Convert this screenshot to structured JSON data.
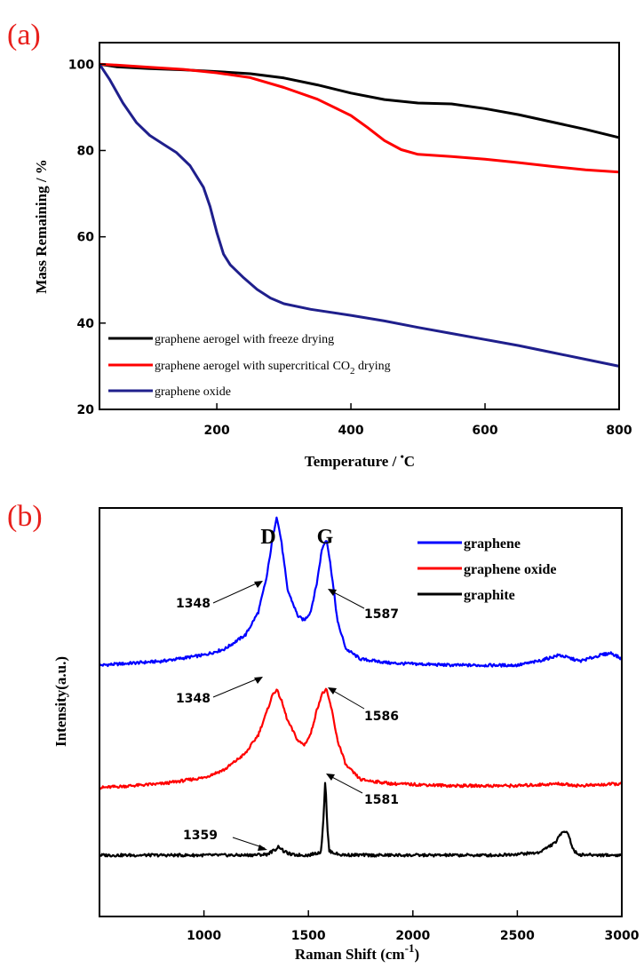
{
  "chart_data": [
    {
      "panel": "(a)",
      "type": "line",
      "xlabel_main": "Temperature / ",
      "xlabel_unit": "C",
      "ylabel": "Mass Remaining / %",
      "xlim": [
        25,
        800
      ],
      "ylim": [
        20,
        105
      ],
      "x_ticks": [
        "200",
        "400",
        "600",
        "800"
      ],
      "y_ticks": [
        "20",
        "40",
        "60",
        "80",
        "100"
      ],
      "legend_position": "bottom-left",
      "series": [
        {
          "name": "graphene aerogel with freeze drying",
          "color": "#000000",
          "x": [
            25,
            50,
            100,
            150,
            200,
            250,
            300,
            350,
            400,
            450,
            500,
            550,
            600,
            650,
            700,
            750,
            800
          ],
          "y": [
            100,
            99.4,
            99,
            98.7,
            98.3,
            97.8,
            96.8,
            95.2,
            93.3,
            91.8,
            91.0,
            90.8,
            89.7,
            88.3,
            86.6,
            84.9,
            83.0
          ]
        },
        {
          "name": "graphene aerogel with supercritical CO2 drying",
          "name_main": "graphene aerogel with supercritical CO",
          "name_sub": "2",
          "name_tail": " drying",
          "color": "#ff0000",
          "x": [
            25,
            50,
            100,
            150,
            200,
            250,
            300,
            350,
            400,
            425,
            450,
            475,
            500,
            550,
            600,
            650,
            700,
            750,
            800
          ],
          "y": [
            100,
            99.8,
            99.3,
            98.8,
            98.0,
            96.9,
            94.6,
            91.9,
            88.1,
            85.3,
            82.3,
            80.2,
            79.1,
            78.6,
            78.0,
            77.2,
            76.3,
            75.5,
            75.0
          ]
        },
        {
          "name": "graphene oxide",
          "color": "#1f1f8c",
          "x": [
            25,
            40,
            60,
            80,
            100,
            120,
            140,
            160,
            180,
            190,
            200,
            210,
            220,
            240,
            260,
            280,
            300,
            340,
            400,
            450,
            500,
            550,
            600,
            650,
            700,
            750,
            800
          ],
          "y": [
            100,
            96.5,
            91,
            86.5,
            83.5,
            81.5,
            79.5,
            76.5,
            71.5,
            67,
            61,
            56,
            53.5,
            50.5,
            47.8,
            45.8,
            44.5,
            43.2,
            41.8,
            40.5,
            39,
            37.6,
            36.2,
            34.8,
            33.2,
            31.6,
            30
          ]
        }
      ]
    },
    {
      "panel": "(b)",
      "type": "line",
      "xlabel_main": "Raman Shift ",
      "xlabel_unit": "cm",
      "xlabel_sup": "-1",
      "ylabel": "Intensity(a.u.)",
      "xlim": [
        500,
        3000
      ],
      "x_ticks": [
        "1000",
        "1500",
        "2000",
        "2500",
        "3000"
      ],
      "band_labels": [
        "D",
        "G"
      ],
      "legend_position": "top-right",
      "series": [
        {
          "name": "graphene",
          "color": "#0000ff",
          "x": [
            500,
            800,
            1000,
            1100,
            1200,
            1260,
            1300,
            1330,
            1348,
            1370,
            1400,
            1450,
            1480,
            1510,
            1540,
            1565,
            1587,
            1610,
            1640,
            1680,
            1750,
            1900,
            2200,
            2500,
            2600,
            2700,
            2800,
            2900,
            2950,
            3000
          ],
          "y": [
            0.615,
            0.625,
            0.64,
            0.655,
            0.69,
            0.745,
            0.83,
            0.93,
            0.98,
            0.92,
            0.8,
            0.735,
            0.725,
            0.745,
            0.815,
            0.9,
            0.925,
            0.845,
            0.72,
            0.655,
            0.63,
            0.62,
            0.615,
            0.615,
            0.625,
            0.64,
            0.625,
            0.64,
            0.645,
            0.63
          ]
        },
        {
          "name": "graphene oxide",
          "color": "#ff0000",
          "x": [
            500,
            800,
            1000,
            1100,
            1200,
            1260,
            1300,
            1330,
            1348,
            1370,
            1400,
            1450,
            1480,
            1510,
            1540,
            1565,
            1586,
            1610,
            1640,
            1680,
            1750,
            1900,
            2200,
            2500,
            2700,
            2800,
            3000
          ],
          "y": [
            0.315,
            0.325,
            0.34,
            0.36,
            0.4,
            0.445,
            0.5,
            0.545,
            0.555,
            0.53,
            0.48,
            0.43,
            0.42,
            0.445,
            0.505,
            0.545,
            0.555,
            0.51,
            0.43,
            0.37,
            0.335,
            0.325,
            0.32,
            0.32,
            0.325,
            0.32,
            0.325
          ]
        },
        {
          "name": "graphite",
          "color": "#000000",
          "x": [
            500,
            1200,
            1300,
            1340,
            1359,
            1380,
            1420,
            1500,
            1560,
            1572,
            1581,
            1590,
            1600,
            1650,
            1800,
            2400,
            2600,
            2680,
            2720,
            2740,
            2770,
            2800,
            3000
          ],
          "y": [
            0.15,
            0.15,
            0.152,
            0.163,
            0.172,
            0.16,
            0.151,
            0.15,
            0.158,
            0.24,
            0.34,
            0.22,
            0.16,
            0.151,
            0.15,
            0.15,
            0.156,
            0.18,
            0.21,
            0.207,
            0.16,
            0.151,
            0.15
          ]
        }
      ],
      "annotations": [
        {
          "text": "1348",
          "series": "graphene",
          "peak_x": 1348
        },
        {
          "text": "1587",
          "series": "graphene",
          "peak_x": 1587
        },
        {
          "text": "1348",
          "series": "graphene oxide",
          "peak_x": 1348
        },
        {
          "text": "1586",
          "series": "graphene oxide",
          "peak_x": 1586
        },
        {
          "text": "1359",
          "series": "graphite",
          "peak_x": 1359
        },
        {
          "text": "1581",
          "series": "graphite",
          "peak_x": 1581
        }
      ]
    }
  ]
}
